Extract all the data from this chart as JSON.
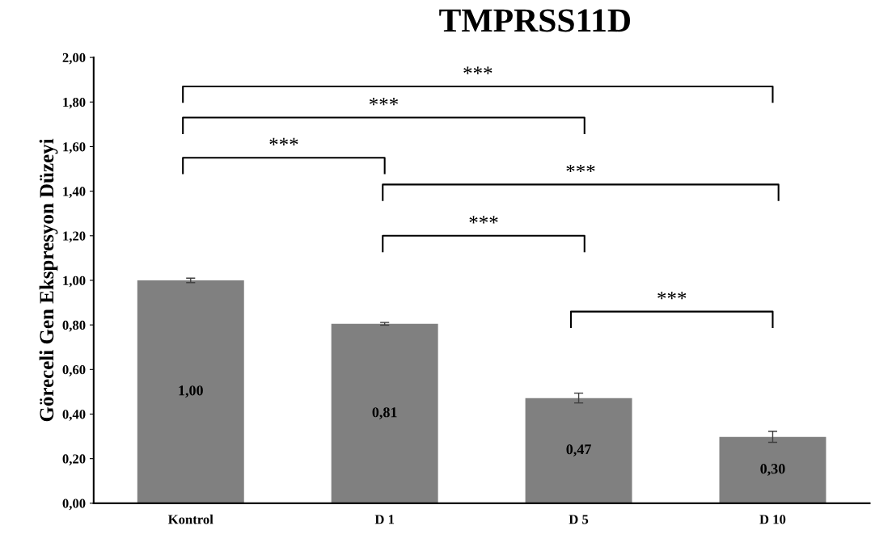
{
  "chart_data": {
    "type": "bar",
    "title": "TMPRSS11D",
    "ylabel": "Göreceli Gen Ekspresyon Düzeyi",
    "categories": [
      "Kontrol",
      "D 1",
      "D 5",
      "D 10"
    ],
    "values": [
      1.0,
      0.805,
      0.472,
      0.298
    ],
    "errors": [
      0.01,
      0.006,
      0.022,
      0.025
    ],
    "value_labels": [
      "1,00",
      "0,81",
      "0,47",
      "0,30"
    ],
    "color": "#808080",
    "ylim": [
      0,
      2
    ],
    "yticks": [
      {
        "value": 0,
        "label": "0,00"
      },
      {
        "value": 0.2,
        "label": "0,20"
      },
      {
        "value": 0.4,
        "label": "0,40"
      },
      {
        "value": 0.6,
        "label": "0,60"
      },
      {
        "value": 0.8,
        "label": "0,80"
      },
      {
        "value": 1.0,
        "label": "1,00"
      },
      {
        "value": 1.2,
        "label": "1,20"
      },
      {
        "value": 1.4,
        "label": "1,40"
      },
      {
        "value": 1.6,
        "label": "1,60"
      },
      {
        "value": 1.8,
        "label": "1,80"
      },
      {
        "value": 2.0,
        "label": "2,00"
      }
    ],
    "grid": false,
    "annotations": [
      "***",
      "***",
      "***",
      "***",
      "***",
      "***"
    ]
  }
}
